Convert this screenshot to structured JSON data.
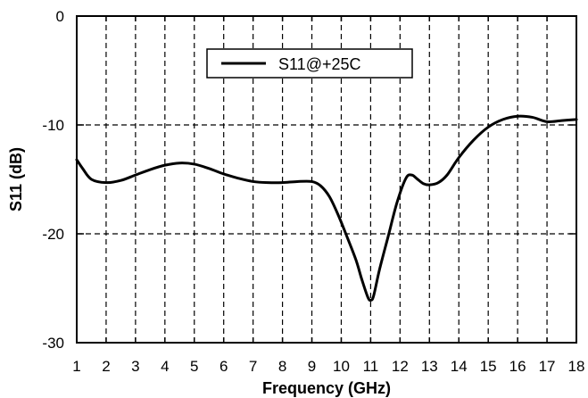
{
  "chart_data": {
    "type": "line",
    "title": "",
    "xlabel": "Frequency (GHz)",
    "ylabel": "S11 (dB)",
    "xlim": [
      1,
      18
    ],
    "ylim": [
      -30,
      0
    ],
    "x_ticks": [
      1,
      2,
      3,
      4,
      5,
      6,
      7,
      8,
      9,
      10,
      11,
      12,
      13,
      14,
      15,
      16,
      17,
      18
    ],
    "y_ticks": [
      0,
      -10,
      -20,
      -30
    ],
    "grid": "dashed",
    "legend_position": "top-center",
    "series": [
      {
        "name": "S11@+25C",
        "color": "#000000",
        "x": [
          1.0,
          1.2,
          1.5,
          2.0,
          2.5,
          3.0,
          3.5,
          4.0,
          4.5,
          5.0,
          5.5,
          6.0,
          6.5,
          7.0,
          7.5,
          8.0,
          8.5,
          9.0,
          9.3,
          9.6,
          9.9,
          10.2,
          10.5,
          10.7,
          10.9,
          11.0,
          11.1,
          11.3,
          11.6,
          11.9,
          12.2,
          12.4,
          12.6,
          12.8,
          13.0,
          13.3,
          13.6,
          14.0,
          14.5,
          15.0,
          15.5,
          16.0,
          16.5,
          17.0,
          17.5,
          18.0
        ],
        "y": [
          -13.2,
          -14.0,
          -15.0,
          -15.3,
          -15.1,
          -14.6,
          -14.1,
          -13.7,
          -13.5,
          -13.6,
          -14.0,
          -14.5,
          -14.9,
          -15.2,
          -15.3,
          -15.3,
          -15.2,
          -15.2,
          -15.6,
          -16.6,
          -18.3,
          -20.3,
          -22.4,
          -24.2,
          -25.8,
          -26.1,
          -25.7,
          -23.3,
          -20.2,
          -17.1,
          -14.9,
          -14.6,
          -15.0,
          -15.4,
          -15.5,
          -15.3,
          -14.6,
          -13.0,
          -11.4,
          -10.2,
          -9.5,
          -9.2,
          -9.3,
          -9.7,
          -9.6,
          -9.5
        ]
      }
    ]
  }
}
